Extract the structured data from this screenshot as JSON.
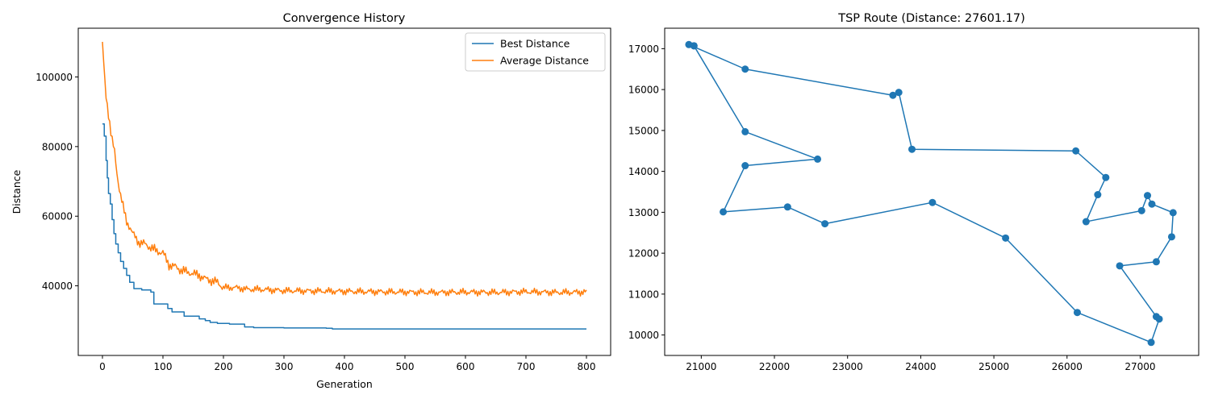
{
  "chart_data": [
    {
      "type": "line",
      "title": "Convergence History",
      "xlabel": "Generation",
      "ylabel": "Distance",
      "xlim": [
        -40,
        840
      ],
      "ylim": [
        20000,
        114000
      ],
      "xticks": [
        0,
        100,
        200,
        300,
        400,
        500,
        600,
        700,
        800
      ],
      "yticks": [
        40000,
        60000,
        80000,
        100000
      ],
      "legend": "top-right",
      "grid": false,
      "series": [
        {
          "name": "Best Distance",
          "color": "#1f77b4",
          "x": [
            0,
            3,
            6,
            8,
            10,
            13,
            16,
            19,
            22,
            26,
            30,
            35,
            40,
            45,
            52,
            65,
            80,
            85,
            100,
            108,
            115,
            135,
            160,
            170,
            178,
            190,
            210,
            235,
            250,
            300,
            370,
            380,
            800
          ],
          "y": [
            86500,
            83000,
            76000,
            71000,
            66500,
            63500,
            59000,
            55000,
            52000,
            49500,
            47000,
            45000,
            43000,
            41000,
            39200,
            38800,
            38200,
            34800,
            34800,
            33500,
            32500,
            31300,
            30500,
            30000,
            29500,
            29200,
            29000,
            28200,
            28000,
            27900,
            27800,
            27601,
            27601
          ]
        },
        {
          "name": "Average Distance",
          "color": "#ff7f0e",
          "x": [
            0,
            5,
            10,
            15,
            20,
            25,
            30,
            35,
            40,
            45,
            50,
            60,
            70,
            80,
            90,
            100,
            110,
            120,
            130,
            140,
            150,
            160,
            170,
            180,
            190,
            200,
            220,
            240,
            260,
            280,
            300,
            350,
            400,
            450,
            500,
            550,
            600,
            650,
            700,
            750,
            800
          ],
          "y": [
            109500,
            96000,
            89500,
            82500,
            78500,
            71000,
            66000,
            62000,
            58500,
            57000,
            55000,
            52500,
            52000,
            51000,
            50000,
            49500,
            46000,
            45500,
            44500,
            44000,
            43500,
            43000,
            42000,
            41500,
            41000,
            39500,
            39500,
            39000,
            39000,
            38800,
            38600,
            38500,
            38400,
            38300,
            38200,
            38100,
            38200,
            38100,
            38300,
            38100,
            38200
          ]
        }
      ]
    },
    {
      "type": "line",
      "title": "TSP Route (Distance: 27601.17)",
      "xlim": [
        20500,
        27800
      ],
      "ylim": [
        9500,
        17500
      ],
      "xticks": [
        21000,
        22000,
        23000,
        24000,
        25000,
        26000,
        27000
      ],
      "yticks": [
        10000,
        11000,
        12000,
        13000,
        14000,
        15000,
        16000,
        17000
      ],
      "grid": false,
      "series": [
        {
          "color": "#1f77b4",
          "x": [
            20900,
            20830,
            21600,
            23620,
            23700,
            23880,
            26120,
            26530,
            26420,
            26260,
            27020,
            27100,
            27160,
            27450,
            27430,
            27220,
            26720,
            27220,
            27260,
            27150,
            26140,
            25160,
            24160,
            22690,
            22180,
            21300,
            21600,
            22590,
            21600,
            20900
          ],
          "y": [
            17070,
            17100,
            16500,
            15860,
            15930,
            14540,
            14500,
            13850,
            13430,
            12770,
            13040,
            13410,
            13200,
            12990,
            12400,
            11790,
            11690,
            10450,
            10390,
            9820,
            10550,
            12370,
            13240,
            12720,
            13130,
            13010,
            14140,
            14300,
            14970,
            17070
          ]
        }
      ]
    }
  ]
}
